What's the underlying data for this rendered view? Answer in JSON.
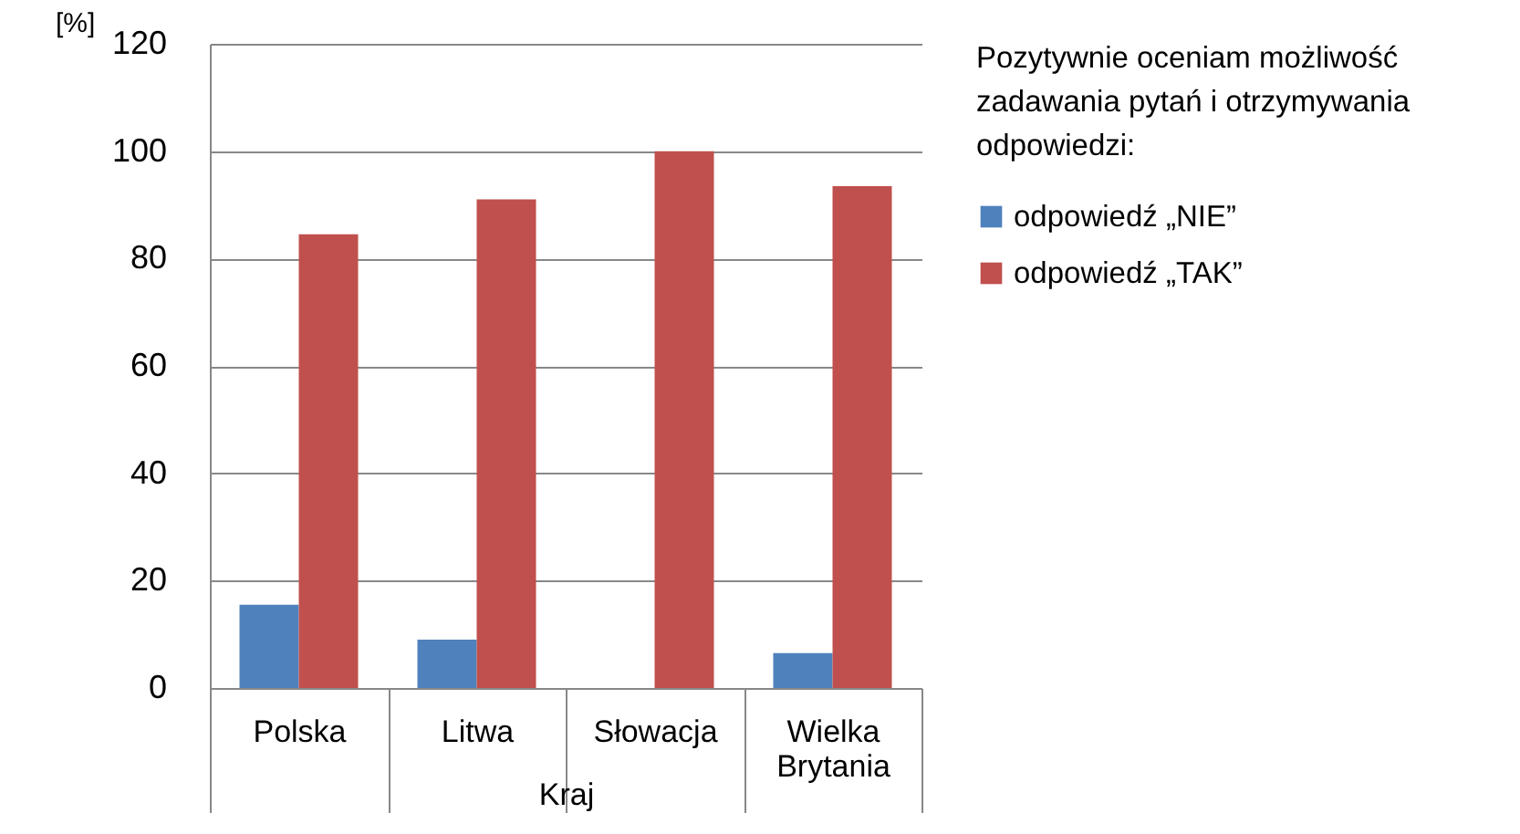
{
  "chart_data": {
    "type": "bar",
    "xlabel": "Kraj",
    "ylabel": "[%]",
    "legend_title": "Pozytywnie oceniam możliwość zadawania pytań i otrzymywania odpowiedzi:",
    "categories": [
      "Polska",
      "Litwa",
      "Słowacja",
      "Wielka Brytania"
    ],
    "series": [
      {
        "name": "odpowiedź „NIE”",
        "color": "#4f81bd",
        "values": [
          15.5,
          9,
          0,
          6.5
        ]
      },
      {
        "name": "odpowiedź „TAK”",
        "color": "#c0504d",
        "values": [
          84.5,
          91,
          100,
          93.5
        ]
      }
    ],
    "ylim": [
      0,
      120
    ],
    "yticks": [
      0,
      20,
      40,
      60,
      80,
      100,
      120
    ],
    "grid": "y",
    "legend": "right"
  }
}
